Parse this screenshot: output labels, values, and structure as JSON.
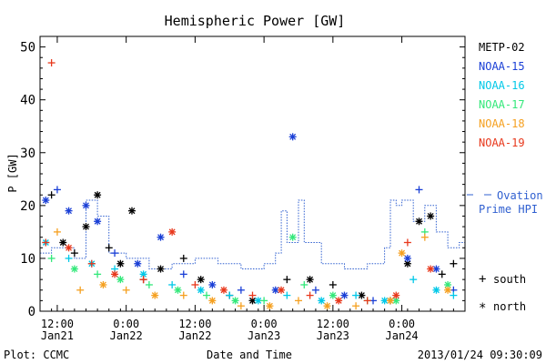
{
  "chart_data": {
    "type": "scatter",
    "title": "Hemispheric Power [GW]",
    "ylabel": "P [GW]",
    "xlabel": "Date and Time",
    "ylim": [
      0,
      52
    ],
    "yticks": [
      "0",
      "10",
      "20",
      "30",
      "40",
      "50"
    ],
    "xlim": [
      "2013-01-21T09:00",
      "2013-01-24T11:00"
    ],
    "xticks": [
      {
        "time": "12:00",
        "date": "Jan21",
        "x": "2013-01-21T12:00"
      },
      {
        "time": "0:00",
        "date": "Jan22",
        "x": "2013-01-22T00:00"
      },
      {
        "time": "12:00",
        "date": "Jan22",
        "x": "2013-01-22T12:00"
      },
      {
        "time": "0:00",
        "date": "Jan23",
        "x": "2013-01-23T00:00"
      },
      {
        "time": "12:00",
        "date": "Jan23",
        "x": "2013-01-23T12:00"
      },
      {
        "time": "0:00",
        "date": "Jan24",
        "x": "2013-01-24T00:00"
      }
    ],
    "legend": [
      {
        "name": "METP-02",
        "color": "#000000"
      },
      {
        "name": "NOAA-15",
        "color": "#1a3fd6"
      },
      {
        "name": "NOAA-16",
        "color": "#00c8e8"
      },
      {
        "name": "NOAA-17",
        "color": "#33e87a"
      },
      {
        "name": "NOAA-18",
        "color": "#f5a020"
      },
      {
        "name": "NOAA-19",
        "color": "#e8381c"
      }
    ],
    "legend_position": "right",
    "ovation_label_line1": "Ovation",
    "ovation_label_line2": "Prime HPI",
    "ovation_color": "#3060d0",
    "marker_legend": [
      {
        "symbol": "+",
        "label": "south"
      },
      {
        "symbol": "*",
        "label": "north"
      }
    ],
    "series": [
      {
        "name": "METP-02",
        "points": [
          [
            "2013-01-21T11:00",
            22,
            "+"
          ],
          [
            "2013-01-21T13:00",
            13,
            "*"
          ],
          [
            "2013-01-21T15:00",
            11,
            "+"
          ],
          [
            "2013-01-21T17:00",
            16,
            "*"
          ],
          [
            "2013-01-21T19:00",
            22,
            "*"
          ],
          [
            "2013-01-21T21:00",
            12,
            "+"
          ],
          [
            "2013-01-21T23:00",
            9,
            "*"
          ],
          [
            "2013-01-22T01:00",
            19,
            "*"
          ],
          [
            "2013-01-22T03:00",
            6,
            "+"
          ],
          [
            "2013-01-22T06:00",
            8,
            "*"
          ],
          [
            "2013-01-22T10:00",
            10,
            "+"
          ],
          [
            "2013-01-22T13:00",
            6,
            "*"
          ],
          [
            "2013-01-22T18:00",
            3,
            "+"
          ],
          [
            "2013-01-22T22:00",
            2,
            "*"
          ],
          [
            "2013-01-23T04:00",
            6,
            "+"
          ],
          [
            "2013-01-23T08:00",
            6,
            "*"
          ],
          [
            "2013-01-23T12:00",
            5,
            "+"
          ],
          [
            "2013-01-23T17:00",
            3,
            "*"
          ],
          [
            "2013-01-23T22:00",
            2,
            "+"
          ],
          [
            "2013-01-24T01:00",
            9,
            "*"
          ],
          [
            "2013-01-24T03:00",
            17,
            "*"
          ],
          [
            "2013-01-24T05:00",
            18,
            "*"
          ],
          [
            "2013-01-24T07:00",
            7,
            "+"
          ],
          [
            "2013-01-24T09:00",
            9,
            "+"
          ]
        ]
      },
      {
        "name": "NOAA-15",
        "points": [
          [
            "2013-01-21T10:00",
            21,
            "*"
          ],
          [
            "2013-01-21T12:00",
            23,
            "+"
          ],
          [
            "2013-01-21T14:00",
            19,
            "*"
          ],
          [
            "2013-01-21T17:00",
            20,
            "*"
          ],
          [
            "2013-01-21T19:00",
            17,
            "*"
          ],
          [
            "2013-01-21T22:00",
            11,
            "+"
          ],
          [
            "2013-01-22T02:00",
            9,
            "*"
          ],
          [
            "2013-01-22T06:00",
            14,
            "*"
          ],
          [
            "2013-01-22T10:00",
            7,
            "+"
          ],
          [
            "2013-01-22T15:00",
            5,
            "*"
          ],
          [
            "2013-01-22T20:00",
            4,
            "+"
          ],
          [
            "2013-01-23T02:00",
            4,
            "*"
          ],
          [
            "2013-01-23T05:00",
            33,
            "*"
          ],
          [
            "2013-01-23T09:00",
            4,
            "+"
          ],
          [
            "2013-01-23T14:00",
            3,
            "*"
          ],
          [
            "2013-01-23T19:00",
            2,
            "+"
          ],
          [
            "2013-01-24T01:00",
            10,
            "*"
          ],
          [
            "2013-01-24T03:00",
            23,
            "+"
          ],
          [
            "2013-01-24T06:00",
            8,
            "*"
          ],
          [
            "2013-01-24T09:00",
            4,
            "+"
          ]
        ]
      },
      {
        "name": "NOAA-16",
        "points": [
          [
            "2013-01-21T10:00",
            13,
            "*"
          ],
          [
            "2013-01-21T14:00",
            10,
            "+"
          ],
          [
            "2013-01-21T18:00",
            9,
            "*"
          ],
          [
            "2013-01-21T22:00",
            8,
            "+"
          ],
          [
            "2013-01-22T03:00",
            7,
            "*"
          ],
          [
            "2013-01-22T08:00",
            5,
            "+"
          ],
          [
            "2013-01-22T13:00",
            4,
            "*"
          ],
          [
            "2013-01-22T18:00",
            3,
            "+"
          ],
          [
            "2013-01-22T23:00",
            2,
            "*"
          ],
          [
            "2013-01-23T04:00",
            3,
            "+"
          ],
          [
            "2013-01-23T10:00",
            2,
            "*"
          ],
          [
            "2013-01-23T16:00",
            3,
            "+"
          ],
          [
            "2013-01-23T21:00",
            2,
            "*"
          ],
          [
            "2013-01-24T02:00",
            6,
            "+"
          ],
          [
            "2013-01-24T06:00",
            4,
            "*"
          ],
          [
            "2013-01-24T09:00",
            3,
            "+"
          ]
        ]
      },
      {
        "name": "NOAA-17",
        "points": [
          [
            "2013-01-21T11:00",
            10,
            "+"
          ],
          [
            "2013-01-21T15:00",
            8,
            "*"
          ],
          [
            "2013-01-21T19:00",
            7,
            "+"
          ],
          [
            "2013-01-21T23:00",
            6,
            "*"
          ],
          [
            "2013-01-22T04:00",
            5,
            "+"
          ],
          [
            "2013-01-22T09:00",
            4,
            "*"
          ],
          [
            "2013-01-22T14:00",
            3,
            "+"
          ],
          [
            "2013-01-22T19:00",
            2,
            "*"
          ],
          [
            "2013-01-23T00:00",
            2,
            "+"
          ],
          [
            "2013-01-23T05:00",
            14,
            "*"
          ],
          [
            "2013-01-23T07:00",
            5,
            "+"
          ],
          [
            "2013-01-23T12:00",
            3,
            "*"
          ],
          [
            "2013-01-23T18:00",
            2,
            "+"
          ],
          [
            "2013-01-23T23:00",
            2,
            "*"
          ],
          [
            "2013-01-24T04:00",
            15,
            "+"
          ],
          [
            "2013-01-24T08:00",
            5,
            "*"
          ]
        ]
      },
      {
        "name": "NOAA-18",
        "points": [
          [
            "2013-01-21T12:00",
            15,
            "+"
          ],
          [
            "2013-01-21T16:00",
            4,
            "+"
          ],
          [
            "2013-01-21T20:00",
            5,
            "*"
          ],
          [
            "2013-01-22T00:00",
            4,
            "+"
          ],
          [
            "2013-01-22T05:00",
            3,
            "*"
          ],
          [
            "2013-01-22T10:00",
            3,
            "+"
          ],
          [
            "2013-01-22T15:00",
            2,
            "*"
          ],
          [
            "2013-01-22T20:00",
            1,
            "+"
          ],
          [
            "2013-01-23T01:00",
            1,
            "*"
          ],
          [
            "2013-01-23T06:00",
            2,
            "+"
          ],
          [
            "2013-01-23T11:00",
            1,
            "*"
          ],
          [
            "2013-01-23T16:00",
            1,
            "+"
          ],
          [
            "2013-01-23T22:00",
            2,
            "*"
          ],
          [
            "2013-01-24T00:00",
            11,
            "*"
          ],
          [
            "2013-01-24T04:00",
            14,
            "+"
          ],
          [
            "2013-01-24T08:00",
            4,
            "*"
          ]
        ]
      },
      {
        "name": "NOAA-19",
        "points": [
          [
            "2013-01-21T10:00",
            13,
            "+"
          ],
          [
            "2013-01-21T11:00",
            47,
            "+"
          ],
          [
            "2013-01-21T14:00",
            12,
            "*"
          ],
          [
            "2013-01-21T18:00",
            9,
            "+"
          ],
          [
            "2013-01-21T22:00",
            7,
            "*"
          ],
          [
            "2013-01-22T03:00",
            6,
            "+"
          ],
          [
            "2013-01-22T08:00",
            15,
            "*"
          ],
          [
            "2013-01-22T12:00",
            5,
            "+"
          ],
          [
            "2013-01-22T17:00",
            4,
            "*"
          ],
          [
            "2013-01-22T22:00",
            3,
            "+"
          ],
          [
            "2013-01-23T03:00",
            4,
            "*"
          ],
          [
            "2013-01-23T08:00",
            3,
            "+"
          ],
          [
            "2013-01-23T13:00",
            2,
            "*"
          ],
          [
            "2013-01-23T18:00",
            2,
            "+"
          ],
          [
            "2013-01-23T23:00",
            3,
            "*"
          ],
          [
            "2013-01-24T01:00",
            13,
            "+"
          ],
          [
            "2013-01-24T05:00",
            8,
            "*"
          ]
        ]
      }
    ],
    "hpi_step": [
      [
        "2013-01-21T09:00",
        11
      ],
      [
        "2013-01-21T11:00",
        12
      ],
      [
        "2013-01-21T15:00",
        10
      ],
      [
        "2013-01-21T17:00",
        21
      ],
      [
        "2013-01-21T19:00",
        18
      ],
      [
        "2013-01-21T21:00",
        11
      ],
      [
        "2013-01-22T00:00",
        10
      ],
      [
        "2013-01-22T04:00",
        8
      ],
      [
        "2013-01-22T08:00",
        9
      ],
      [
        "2013-01-22T12:00",
        10
      ],
      [
        "2013-01-22T16:00",
        9
      ],
      [
        "2013-01-22T20:00",
        8
      ],
      [
        "2013-01-23T00:00",
        9
      ],
      [
        "2013-01-23T02:00",
        11
      ],
      [
        "2013-01-23T03:00",
        19
      ],
      [
        "2013-01-23T04:00",
        13
      ],
      [
        "2013-01-23T06:00",
        21
      ],
      [
        "2013-01-23T07:00",
        13
      ],
      [
        "2013-01-23T10:00",
        9
      ],
      [
        "2013-01-23T14:00",
        8
      ],
      [
        "2013-01-23T18:00",
        9
      ],
      [
        "2013-01-23T21:00",
        12
      ],
      [
        "2013-01-23T22:00",
        21
      ],
      [
        "2013-01-23T23:00",
        20
      ],
      [
        "2013-01-24T00:00",
        21
      ],
      [
        "2013-01-24T02:00",
        17
      ],
      [
        "2013-01-24T04:00",
        20
      ],
      [
        "2013-01-24T06:00",
        15
      ],
      [
        "2013-01-24T08:00",
        12
      ],
      [
        "2013-01-24T10:00",
        13
      ],
      [
        "2013-01-24T11:00",
        13
      ]
    ]
  },
  "footer": {
    "plot_label": "Plot: CCMC",
    "timestamp": "2013/01/24 09:30:09"
  }
}
